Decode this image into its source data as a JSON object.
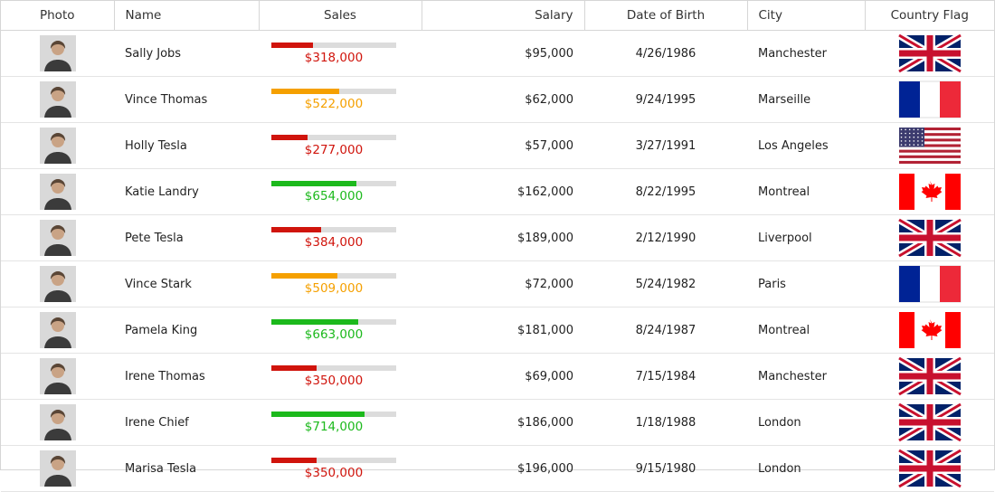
{
  "columns": [
    "Photo",
    "Name",
    "Sales",
    "Salary",
    "Date of Birth",
    "City",
    "Country Flag"
  ],
  "rows": [
    {
      "name": "Sally Jobs",
      "sales": {
        "value": 318000,
        "label": "$318,000",
        "color": "#d0140c"
      },
      "salary": "$95,000",
      "dob": "4/26/1986",
      "city": "Manchester",
      "flag": "uk"
    },
    {
      "name": "Vince Thomas",
      "sales": {
        "value": 522000,
        "label": "$522,000",
        "color": "#f5a000"
      },
      "salary": "$62,000",
      "dob": "9/24/1995",
      "city": "Marseille",
      "flag": "fr"
    },
    {
      "name": "Holly Tesla",
      "sales": {
        "value": 277000,
        "label": "$277,000",
        "color": "#d0140c"
      },
      "salary": "$57,000",
      "dob": "3/27/1991",
      "city": "Los Angeles",
      "flag": "us"
    },
    {
      "name": "Katie Landry",
      "sales": {
        "value": 654000,
        "label": "$654,000",
        "color": "#1cb91c"
      },
      "salary": "$162,000",
      "dob": "8/22/1995",
      "city": "Montreal",
      "flag": "ca"
    },
    {
      "name": "Pete Tesla",
      "sales": {
        "value": 384000,
        "label": "$384,000",
        "color": "#d0140c"
      },
      "salary": "$189,000",
      "dob": "2/12/1990",
      "city": "Liverpool",
      "flag": "uk"
    },
    {
      "name": "Vince Stark",
      "sales": {
        "value": 509000,
        "label": "$509,000",
        "color": "#f5a000"
      },
      "salary": "$72,000",
      "dob": "5/24/1982",
      "city": "Paris",
      "flag": "fr"
    },
    {
      "name": "Pamela King",
      "sales": {
        "value": 663000,
        "label": "$663,000",
        "color": "#1cb91c"
      },
      "salary": "$181,000",
      "dob": "8/24/1987",
      "city": "Montreal",
      "flag": "ca"
    },
    {
      "name": "Irene Thomas",
      "sales": {
        "value": 350000,
        "label": "$350,000",
        "color": "#d0140c"
      },
      "salary": "$69,000",
      "dob": "7/15/1984",
      "city": "Manchester",
      "flag": "uk"
    },
    {
      "name": "Irene Chief",
      "sales": {
        "value": 714000,
        "label": "$714,000",
        "color": "#1cb91c"
      },
      "salary": "$186,000",
      "dob": "1/18/1988",
      "city": "London",
      "flag": "uk"
    },
    {
      "name": "Marisa Tesla",
      "sales": {
        "value": 350000,
        "label": "$350,000",
        "color": "#d0140c"
      },
      "salary": "$196,000",
      "dob": "9/15/1980",
      "city": "London",
      "flag": "uk"
    }
  ]
}
